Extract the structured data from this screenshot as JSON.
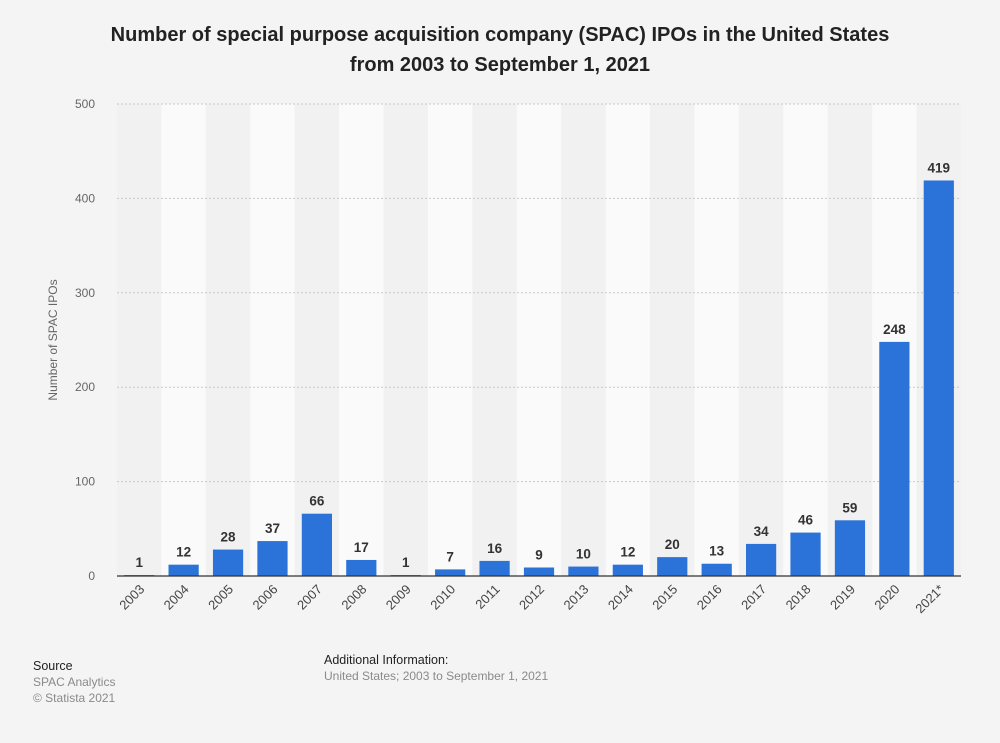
{
  "header": {
    "title_line1": "Number of special purpose acquisition company (SPAC) IPOs in the United States",
    "title_line2": "from 2003 to September 1, 2021"
  },
  "footer": {
    "source_heading": "Source",
    "source_name": "SPAC Analytics",
    "copyright": "© Statista 2021",
    "additional_heading": "Additional Information:",
    "additional_text": "United States; 2003 to September 1, 2021"
  },
  "colors": {
    "bar": "#2b72d9",
    "band_light": "#fafafa",
    "band_dark": "#f1f1f1",
    "grid": "#c8c8c8",
    "axis": "#333333"
  },
  "chart_data": {
    "type": "bar",
    "title": "Number of special purpose acquisition company (SPAC) IPOs in the United States from 2003 to September 1, 2021",
    "xlabel": "",
    "ylabel": "Number of SPAC IPOs",
    "ylim": [
      0,
      500
    ],
    "yticks": [
      0,
      100,
      200,
      300,
      400,
      500
    ],
    "grid": true,
    "categories": [
      "2003",
      "2004",
      "2005",
      "2006",
      "2007",
      "2008",
      "2009",
      "2010",
      "2011",
      "2012",
      "2013",
      "2014",
      "2015",
      "2016",
      "2017",
      "2018",
      "2019",
      "2020",
      "2021*"
    ],
    "values": [
      1,
      12,
      28,
      37,
      66,
      17,
      1,
      7,
      16,
      9,
      10,
      12,
      20,
      13,
      34,
      46,
      59,
      248,
      419
    ]
  }
}
